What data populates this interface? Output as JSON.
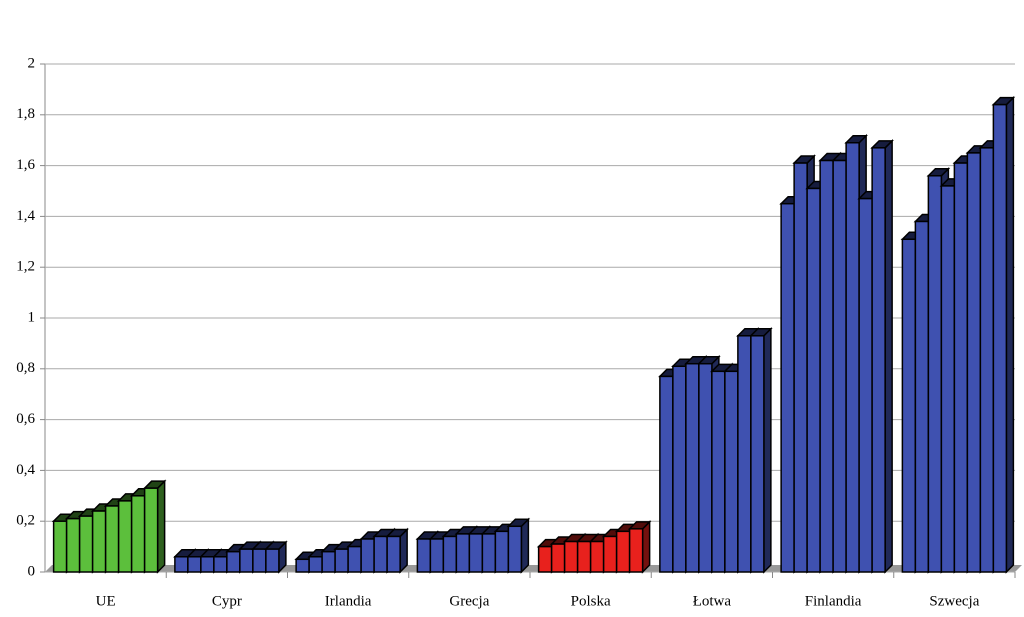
{
  "chart_data": {
    "type": "bar3d",
    "categories": [
      "UE",
      "Cypr",
      "Irlandia",
      "Grecja",
      "Polska",
      "Łotwa",
      "Finlandia",
      "Szwecja"
    ],
    "groups": [
      {
        "color": "#5cbf3c",
        "values": [
          0.2,
          0.21,
          0.22,
          0.24,
          0.26,
          0.28,
          0.3,
          0.33
        ]
      },
      {
        "color": "#3f51b0",
        "values": [
          0.06,
          0.06,
          0.06,
          0.06,
          0.08,
          0.09,
          0.09,
          0.09
        ]
      },
      {
        "color": "#3f51b0",
        "values": [
          0.05,
          0.06,
          0.08,
          0.09,
          0.1,
          0.13,
          0.14,
          0.14
        ]
      },
      {
        "color": "#3f51b0",
        "values": [
          0.13,
          0.13,
          0.14,
          0.15,
          0.15,
          0.15,
          0.16,
          0.18
        ]
      },
      {
        "color": "#e8211d",
        "values": [
          0.1,
          0.11,
          0.12,
          0.12,
          0.12,
          0.14,
          0.16,
          0.17
        ]
      },
      {
        "color": "#3f51b0",
        "values": [
          0.77,
          0.81,
          0.82,
          0.82,
          0.79,
          0.79,
          0.93,
          0.93
        ]
      },
      {
        "color": "#3f51b0",
        "values": [
          1.45,
          1.61,
          1.51,
          1.62,
          1.62,
          1.69,
          1.47,
          1.67
        ]
      },
      {
        "color": "#3f51b0",
        "values": [
          1.31,
          1.38,
          1.56,
          1.52,
          1.61,
          1.65,
          1.67,
          1.84
        ]
      }
    ],
    "ylim": [
      0,
      2
    ],
    "yticks": [
      0,
      {
        "value": 0.2,
        "label": "0,2"
      },
      {
        "value": 0.4,
        "label": "0,4"
      },
      {
        "value": 0.6,
        "label": "0,6"
      },
      {
        "value": 0.8,
        "label": "0,8"
      },
      1,
      {
        "value": 1.2,
        "label": "1,2"
      },
      {
        "value": 1.4,
        "label": "1,4"
      },
      {
        "value": 1.6,
        "label": "1,6"
      },
      {
        "value": 1.8,
        "label": "1,8"
      },
      2
    ],
    "grid": true
  }
}
